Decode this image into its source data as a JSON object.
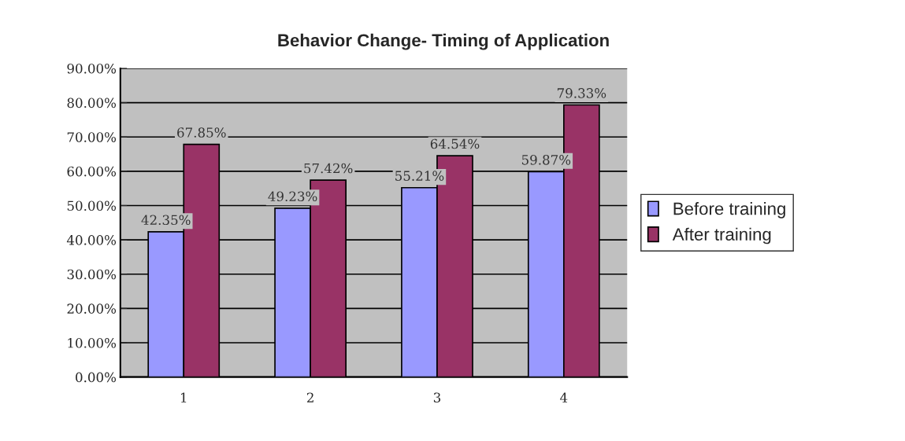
{
  "chart_data": {
    "type": "bar",
    "title": "Behavior Change- Timing of Application",
    "categories": [
      "1",
      "2",
      "3",
      "4"
    ],
    "series": [
      {
        "name": "Before training",
        "color": "#9999ff",
        "values": [
          42.35,
          49.23,
          55.21,
          59.87
        ],
        "value_labels": [
          "42.35%",
          "49.23%",
          "55.21%",
          "59.87%"
        ]
      },
      {
        "name": "After training",
        "color": "#993366",
        "values": [
          67.85,
          57.42,
          64.54,
          79.33
        ],
        "value_labels": [
          "67.85%",
          "57.42%",
          "64.54%",
          "79.33%"
        ]
      }
    ],
    "ylim": [
      0,
      90
    ],
    "yticks": [
      {
        "value": 0,
        "label": "0.00%"
      },
      {
        "value": 10,
        "label": "10.00%"
      },
      {
        "value": 20,
        "label": "20.00%"
      },
      {
        "value": 30,
        "label": "30.00%"
      },
      {
        "value": 40,
        "label": "40.00%"
      },
      {
        "value": 50,
        "label": "50.00%"
      },
      {
        "value": 60,
        "label": "60.00%"
      },
      {
        "value": 70,
        "label": "70.00%"
      },
      {
        "value": 80,
        "label": "80.00%"
      },
      {
        "value": 90,
        "label": "90.00%"
      }
    ],
    "grid": "y",
    "legend": "right"
  }
}
